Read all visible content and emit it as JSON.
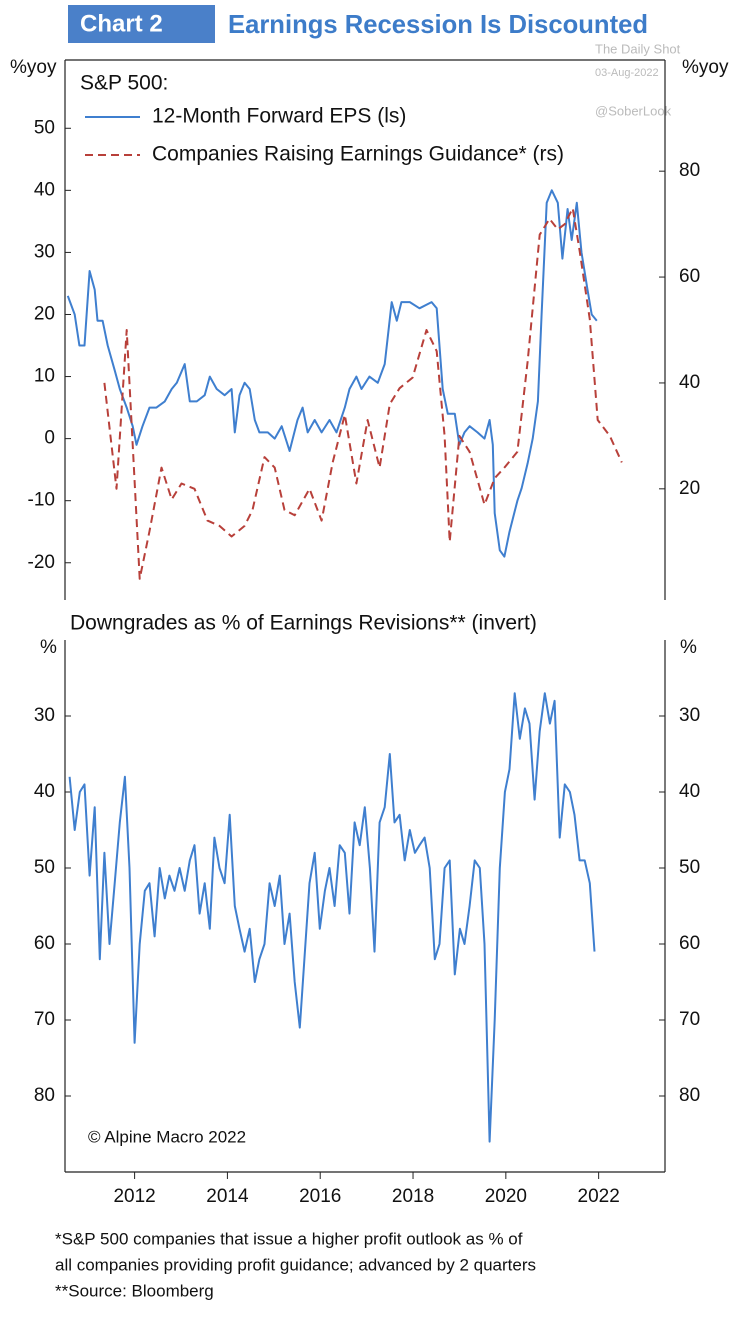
{
  "header": {
    "badge": "Chart 2",
    "title": "Earnings Recession Is Discounted"
  },
  "watermark": [
    "The Daily Shot",
    "03-Aug-2022",
    "@SoberLook"
  ],
  "footnotes": [
    "*S&P 500 companies that issue a higher profit outlook as % of",
    "all companies providing profit guidance; advanced by 2 quarters",
    "**Source: Bloomberg"
  ],
  "chart_data": [
    {
      "type": "line",
      "title": "S&P 500:",
      "y_label": "%yoy",
      "y2_label": "%yoy",
      "xlim": [
        2010.5,
        2023.43
      ],
      "ylim": [
        -26,
        61
      ],
      "yticks": [
        -20,
        -10,
        0,
        10,
        20,
        30,
        40,
        50
      ],
      "y2lim": [
        -1,
        101
      ],
      "y2ticks": [
        20,
        40,
        60,
        80
      ],
      "series": [
        {
          "name": "12-Month Forward EPS (ls)",
          "color": "#3f7fcf",
          "style": "solid",
          "x": [
            2010.56,
            2010.71,
            2010.81,
            2010.92,
            2011.03,
            2011.14,
            2011.2,
            2011.31,
            2011.42,
            2011.57,
            2011.68,
            2011.83,
            2011.96,
            2012.04,
            2012.17,
            2012.32,
            2012.47,
            2012.65,
            2012.8,
            2012.91,
            2013.08,
            2013.19,
            2013.34,
            2013.51,
            2013.62,
            2013.77,
            2013.94,
            2014.09,
            2014.16,
            2014.26,
            2014.37,
            2014.48,
            2014.59,
            2014.69,
            2014.87,
            2015.02,
            2015.17,
            2015.34,
            2015.51,
            2015.62,
            2015.73,
            2015.88,
            2016.03,
            2016.2,
            2016.35,
            2016.53,
            2016.63,
            2016.78,
            2016.89,
            2017.06,
            2017.24,
            2017.39,
            2017.54,
            2017.65,
            2017.75,
            2017.93,
            2018.14,
            2018.4,
            2018.51,
            2018.64,
            2018.75,
            2018.9,
            2019.0,
            2019.11,
            2019.22,
            2019.39,
            2019.54,
            2019.65,
            2019.72,
            2019.76,
            2019.87,
            2019.97,
            2020.08,
            2020.25,
            2020.34,
            2020.47,
            2020.58,
            2020.69,
            2020.77,
            2020.88,
            2020.99,
            2021.12,
            2021.22,
            2021.33,
            2021.42,
            2021.53,
            2021.63,
            2021.76,
            2021.85,
            2021.96
          ],
          "values": [
            23,
            20,
            15,
            15,
            27,
            24,
            19,
            19,
            15,
            11,
            8,
            5,
            2,
            -1,
            2,
            5,
            5,
            6,
            8,
            9,
            12,
            6,
            6,
            7,
            10,
            8,
            7,
            8,
            1,
            7,
            9,
            8,
            3,
            1,
            1,
            0,
            2,
            -2,
            3,
            5,
            1,
            3,
            1,
            3,
            1,
            5,
            8,
            10,
            8,
            10,
            9,
            12,
            22,
            19,
            22,
            22,
            21,
            22,
            21,
            8,
            4,
            4,
            -1,
            1,
            2,
            1,
            0,
            3,
            -1,
            -12,
            -18,
            -19,
            -15,
            -10,
            -8,
            -4,
            0,
            6,
            20,
            38,
            40,
            38,
            29,
            37,
            32,
            38,
            30,
            24,
            20,
            19
          ]
        },
        {
          "name": "Companies Raising Earnings Guidance* (rs)",
          "color": "#b8403a",
          "style": "dashed",
          "axis": "y2",
          "x": [
            2011.35,
            2011.61,
            2011.83,
            2012.11,
            2012.32,
            2012.58,
            2012.8,
            2013.01,
            2013.29,
            2013.57,
            2013.83,
            2014.09,
            2014.37,
            2014.54,
            2014.8,
            2015.02,
            2015.23,
            2015.45,
            2015.77,
            2016.03,
            2016.27,
            2016.53,
            2016.78,
            2017.02,
            2017.28,
            2017.5,
            2017.71,
            2017.99,
            2018.29,
            2018.51,
            2018.68,
            2018.79,
            2019.0,
            2019.22,
            2019.54,
            2019.76,
            2019.97,
            2020.25,
            2020.47,
            2020.73,
            2020.94,
            2021.12,
            2021.27,
            2021.44,
            2021.59,
            2021.81,
            2021.98,
            2022.24,
            2022.5
          ],
          "values": [
            40,
            20,
            50,
            3,
            12,
            24,
            18,
            21,
            20,
            14,
            13,
            11,
            13,
            16,
            26,
            24,
            16,
            15,
            20,
            14,
            25,
            34,
            21,
            33,
            24,
            36,
            39,
            41,
            50,
            46,
            30,
            10,
            30,
            27,
            17,
            22,
            24,
            27,
            44,
            68,
            71,
            69,
            70,
            73,
            65,
            52,
            33,
            30,
            25
          ]
        }
      ]
    },
    {
      "type": "line",
      "title": "Downgrades as % of Earnings Revisions** (invert)",
      "y_label": "%",
      "y2_label": "%",
      "source": "© Alpine Macro 2022",
      "xlim": [
        2010.5,
        2023.43
      ],
      "xticks": [
        2012,
        2014,
        2016,
        2018,
        2020,
        2022
      ],
      "ylim": [
        20,
        90
      ],
      "inverted": true,
      "yticks": [
        30,
        40,
        50,
        60,
        70,
        80
      ],
      "y2lim": [
        20,
        90
      ],
      "y2ticks": [
        30,
        40,
        50,
        60,
        70,
        80
      ],
      "series": [
        {
          "name": "Downgrades",
          "color": "#3f7fcf",
          "style": "solid",
          "x": [
            2010.6,
            2010.71,
            2010.82,
            2010.92,
            2011.03,
            2011.14,
            2011.25,
            2011.35,
            2011.46,
            2011.57,
            2011.68,
            2011.79,
            2011.89,
            2012.0,
            2012.11,
            2012.22,
            2012.32,
            2012.43,
            2012.54,
            2012.65,
            2012.75,
            2012.86,
            2012.97,
            2013.08,
            2013.19,
            2013.29,
            2013.4,
            2013.51,
            2013.62,
            2013.72,
            2013.83,
            2013.94,
            2014.05,
            2014.16,
            2014.26,
            2014.37,
            2014.48,
            2014.59,
            2014.69,
            2014.8,
            2014.91,
            2015.02,
            2015.13,
            2015.23,
            2015.34,
            2015.45,
            2015.56,
            2015.66,
            2015.77,
            2015.88,
            2015.99,
            2016.1,
            2016.2,
            2016.31,
            2016.42,
            2016.53,
            2016.63,
            2016.74,
            2016.85,
            2016.96,
            2017.07,
            2017.17,
            2017.28,
            2017.39,
            2017.5,
            2017.6,
            2017.71,
            2017.82,
            2017.93,
            2018.04,
            2018.14,
            2018.25,
            2018.36,
            2018.47,
            2018.57,
            2018.68,
            2018.79,
            2018.9,
            2019.01,
            2019.11,
            2019.22,
            2019.33,
            2019.44,
            2019.54,
            2019.65,
            2019.76,
            2019.87,
            2019.98,
            2020.08,
            2020.19,
            2020.3,
            2020.41,
            2020.51,
            2020.62,
            2020.73,
            2020.84,
            2020.95,
            2021.05,
            2021.16,
            2021.27,
            2021.38,
            2021.48,
            2021.59,
            2021.7,
            2021.81,
            2021.91
          ],
          "values": [
            38,
            45,
            40,
            39,
            51,
            42,
            62,
            48,
            60,
            52,
            44,
            38,
            50,
            73,
            60,
            53,
            52,
            59,
            50,
            54,
            51,
            53,
            50,
            53,
            49,
            47,
            56,
            52,
            58,
            46,
            50,
            52,
            43,
            55,
            58,
            61,
            58,
            65,
            62,
            60,
            52,
            55,
            51,
            60,
            56,
            65,
            71,
            62,
            52,
            48,
            58,
            53,
            50,
            55,
            47,
            48,
            56,
            44,
            47,
            42,
            50,
            61,
            44,
            42,
            35,
            44,
            43,
            49,
            45,
            48,
            47,
            46,
            50,
            62,
            60,
            50,
            49,
            64,
            58,
            60,
            55,
            49,
            50,
            60,
            86,
            70,
            50,
            40,
            37,
            27,
            33,
            29,
            31,
            41,
            32,
            27,
            31,
            28,
            46,
            39,
            40,
            43,
            49,
            49,
            52,
            61
          ]
        }
      ]
    }
  ]
}
